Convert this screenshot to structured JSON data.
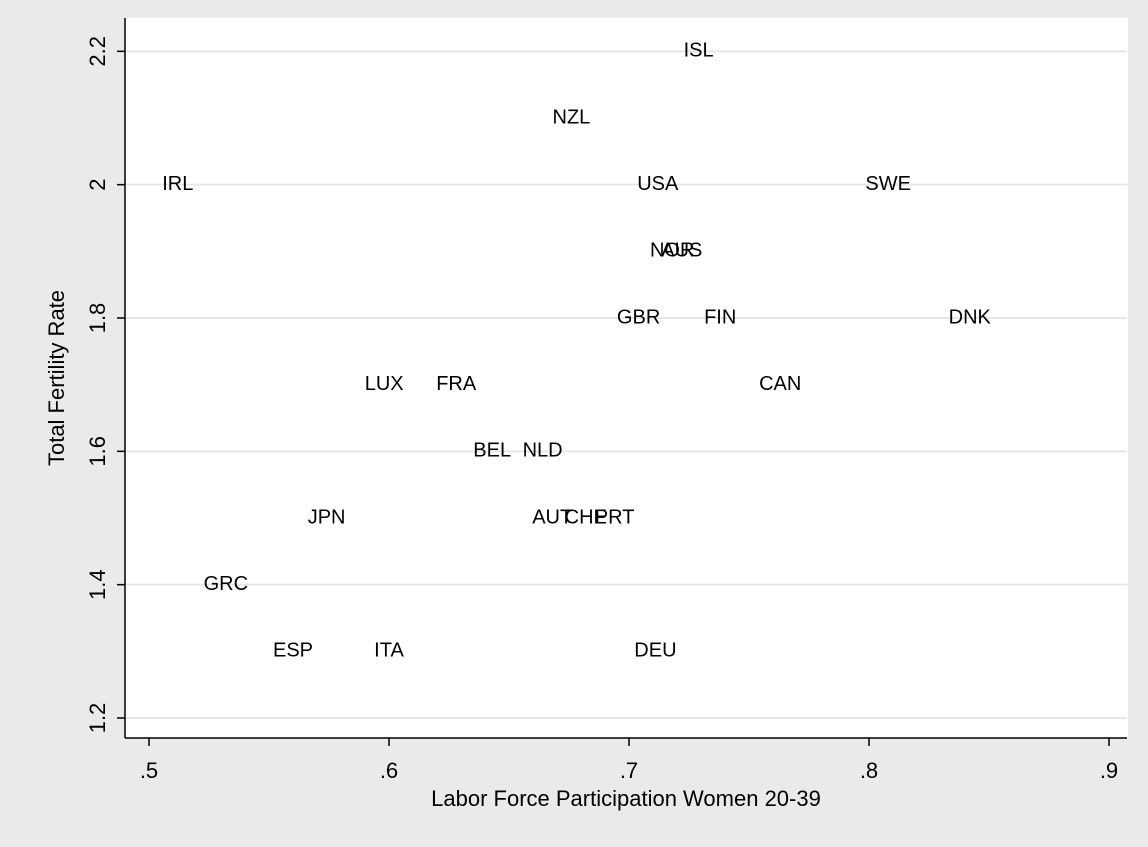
{
  "chart_data": {
    "type": "scatter",
    "x_label": "Labor Force Participation Women 20-39",
    "y_label": "Total Fertility Rate",
    "labels": [
      "ISL",
      "NZL",
      "IRL",
      "USA",
      "SWE",
      "NOR",
      "AUS",
      "GBR",
      "FIN",
      "DNK",
      "LUX",
      "FRA",
      "CAN",
      "BEL",
      "NLD",
      "JPN",
      "AUT",
      "CHE",
      "PRT",
      "GRC",
      "ESP",
      "ITA",
      "DEU"
    ],
    "x": [
      0.729,
      0.676,
      0.512,
      0.712,
      0.808,
      0.718,
      0.722,
      0.704,
      0.738,
      0.842,
      0.598,
      0.628,
      0.763,
      0.643,
      0.664,
      0.574,
      0.668,
      0.682,
      0.694,
      0.532,
      0.56,
      0.6,
      0.711
    ],
    "values": [
      2.2,
      2.1,
      2.0,
      2.0,
      2.0,
      1.9,
      1.9,
      1.8,
      1.8,
      1.8,
      1.7,
      1.7,
      1.7,
      1.6,
      1.6,
      1.5,
      1.5,
      1.5,
      1.5,
      1.4,
      1.3,
      1.3,
      1.3
    ],
    "color": "#000000",
    "xlim": [
      0.49,
      0.9075
    ],
    "ylim": [
      1.17,
      2.25
    ],
    "xticks": [
      {
        "value": 0.5,
        "label": ".5"
      },
      {
        "value": 0.6,
        "label": ".6"
      },
      {
        "value": 0.7,
        "label": ".7"
      },
      {
        "value": 0.8,
        "label": ".8"
      },
      {
        "value": 0.9,
        "label": ".9"
      }
    ],
    "yticks": [
      1.2,
      1.4,
      1.6,
      1.8,
      2,
      2.2
    ],
    "grid": true
  }
}
